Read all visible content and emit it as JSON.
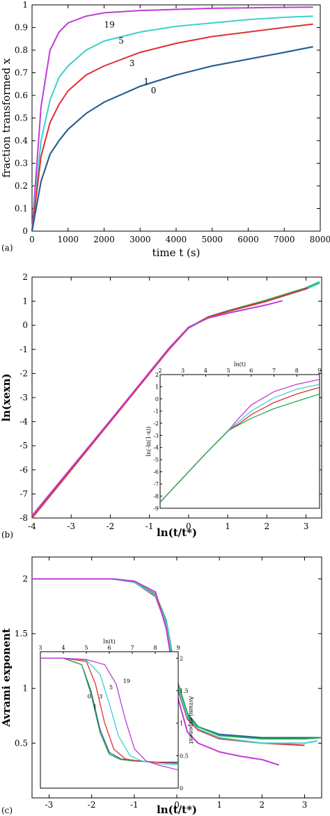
{
  "chart_data": [
    {
      "id": "a",
      "panel_label": "(a)",
      "type": "line",
      "xlabel": "time t (s)",
      "ylabel": "fraction transformed x",
      "xlim": [
        0,
        8000
      ],
      "ylim": [
        0,
        1
      ],
      "xticks": [
        0,
        1000,
        2000,
        3000,
        4000,
        5000,
        6000,
        7000,
        8000
      ],
      "yticks": [
        0,
        0.1,
        0.2,
        0.3,
        0.4,
        0.5,
        0.6,
        0.7,
        0.8,
        0.9,
        1
      ],
      "series": [
        {
          "name": "19",
          "color": "#c03bd9",
          "x": [
            0,
            250,
            500,
            750,
            1000,
            1500,
            2000,
            3000,
            4000,
            5000,
            6000,
            7000,
            7800
          ],
          "y": [
            0,
            0.55,
            0.8,
            0.88,
            0.92,
            0.95,
            0.965,
            0.975,
            0.98,
            0.985,
            0.987,
            0.989,
            0.99
          ]
        },
        {
          "name": "5",
          "color": "#3ccfcf",
          "x": [
            0,
            250,
            500,
            750,
            1000,
            1500,
            2000,
            3000,
            4000,
            5000,
            6000,
            7000,
            7800
          ],
          "y": [
            0,
            0.4,
            0.58,
            0.68,
            0.73,
            0.8,
            0.84,
            0.88,
            0.905,
            0.92,
            0.935,
            0.945,
            0.95
          ]
        },
        {
          "name": "3",
          "color": "#e03030",
          "x": [
            0,
            250,
            500,
            750,
            1000,
            1500,
            2000,
            3000,
            4000,
            5000,
            6000,
            7000,
            7800
          ],
          "y": [
            0,
            0.33,
            0.48,
            0.56,
            0.62,
            0.69,
            0.73,
            0.79,
            0.83,
            0.86,
            0.88,
            0.9,
            0.915
          ]
        },
        {
          "name": "1",
          "color": "#2a9d3a",
          "x": [
            0,
            250,
            500,
            750,
            1000,
            1500,
            2000,
            3000,
            4000,
            5000,
            6000,
            7000,
            7800
          ],
          "y": [
            0,
            0.22,
            0.34,
            0.4,
            0.45,
            0.52,
            0.57,
            0.64,
            0.69,
            0.73,
            0.76,
            0.79,
            0.815
          ]
        },
        {
          "name": "0",
          "color": "#2a5a9a",
          "x": [
            0,
            250,
            500,
            750,
            1000,
            1500,
            2000,
            3000,
            4000,
            5000,
            6000,
            7000,
            7800
          ],
          "y": [
            0,
            0.22,
            0.34,
            0.4,
            0.45,
            0.52,
            0.57,
            0.64,
            0.69,
            0.73,
            0.76,
            0.79,
            0.815
          ]
        }
      ],
      "curve_labels": [
        {
          "text": "19",
          "x": 2000,
          "y": 0.9
        },
        {
          "text": "5",
          "x": 2400,
          "y": 0.83
        },
        {
          "text": "3",
          "x": 2700,
          "y": 0.73
        },
        {
          "text": "1",
          "x": 3100,
          "y": 0.65
        },
        {
          "text": "0",
          "x": 3300,
          "y": 0.61
        }
      ]
    },
    {
      "id": "b",
      "panel_label": "(b)",
      "type": "line",
      "xlabel": "ln(t/t*)",
      "ylabel": "ln(xexn)",
      "xlim": [
        -4,
        3.4
      ],
      "ylim": [
        -8,
        2
      ],
      "xticks": [
        -4,
        -3,
        -2,
        -1,
        0,
        1,
        2,
        3
      ],
      "yticks": [
        -8,
        -7,
        -6,
        -5,
        -4,
        -3,
        -2,
        -1,
        0,
        1,
        2
      ],
      "series": [
        {
          "name": "",
          "color": "#2aa84a",
          "x": [
            -4,
            -2,
            -1,
            -0.5,
            0,
            0.5,
            1,
            2,
            3,
            3.35
          ],
          "y": [
            -8,
            -4,
            -2,
            -1,
            -0.1,
            0.35,
            0.6,
            1.05,
            1.55,
            1.8
          ]
        },
        {
          "name": "",
          "color": "#3ccfcf",
          "x": [
            -4,
            -2,
            -1,
            -0.5,
            0,
            0.5,
            1,
            2,
            3,
            3.35
          ],
          "y": [
            -8,
            -4,
            -2,
            -1,
            -0.12,
            0.32,
            0.56,
            1.0,
            1.5,
            1.75
          ]
        },
        {
          "name": "",
          "color": "#e03030",
          "x": [
            -4,
            -2,
            -1,
            -0.5,
            0,
            0.5,
            1,
            2,
            3.05
          ],
          "y": [
            -8,
            -4,
            -2,
            -1,
            -0.1,
            0.33,
            0.58,
            1.0,
            1.55
          ]
        },
        {
          "name": "",
          "color": "#c03bd9",
          "x": [
            -4,
            -2,
            -1,
            -0.5,
            0,
            0.5,
            1,
            2,
            2.4
          ],
          "y": [
            -7.9,
            -3.95,
            -1.95,
            -0.95,
            -0.08,
            0.3,
            0.5,
            0.85,
            1.02
          ]
        }
      ],
      "inset": {
        "xlabel": "ln(t)",
        "ylabel": "ln(-ln(1-x))",
        "xlim": [
          2,
          9
        ],
        "ylim": [
          -9,
          2
        ],
        "xticks": [
          2,
          3,
          4,
          5,
          6,
          7,
          8,
          9
        ],
        "yticks": [
          -9,
          -8,
          -7,
          -6,
          -5,
          -4,
          -3,
          -2,
          -1,
          0,
          1,
          2
        ],
        "series": [
          {
            "color": "#c03bd9",
            "x": [
              2,
              3,
              4,
              5,
              5.5,
              6,
              7,
              8,
              9
            ],
            "y": [
              -8.5,
              -6.5,
              -4.5,
              -2.6,
              -1.5,
              -0.5,
              0.6,
              1.2,
              1.6
            ]
          },
          {
            "color": "#3ccfcf",
            "x": [
              2,
              3,
              4,
              5,
              5.5,
              6,
              7,
              8,
              9
            ],
            "y": [
              -8.5,
              -6.5,
              -4.5,
              -2.6,
              -1.8,
              -1.0,
              0.1,
              0.8,
              1.2
            ]
          },
          {
            "color": "#e03030",
            "x": [
              2,
              3,
              4,
              5,
              5.5,
              6,
              7,
              8,
              9
            ],
            "y": [
              -8.5,
              -6.5,
              -4.5,
              -2.6,
              -2.0,
              -1.3,
              -0.3,
              0.4,
              0.95
            ]
          },
          {
            "color": "#2aa84a",
            "x": [
              2,
              3,
              4,
              5,
              5.5,
              6,
              7,
              8,
              9
            ],
            "y": [
              -8.5,
              -6.5,
              -4.5,
              -2.6,
              -2.1,
              -1.6,
              -0.8,
              -0.2,
              0.4
            ]
          }
        ]
      }
    },
    {
      "id": "c",
      "panel_label": "(c)",
      "type": "line",
      "xlabel": "ln(t/t*)",
      "ylabel": "Avrami exponent",
      "xlim": [
        -3.4,
        3.4
      ],
      "ylim": [
        0,
        2.2
      ],
      "xticks": [
        -3,
        -2,
        -1,
        0,
        1,
        2,
        3
      ],
      "yticks": [
        0.5,
        1,
        1.5,
        2
      ],
      "series": [
        {
          "name": "",
          "color": "#2a5a9a",
          "x": [
            -3.4,
            -1.5,
            -1,
            -0.5,
            -0.25,
            0,
            0.25,
            0.5,
            1,
            2,
            3,
            3.4
          ],
          "y": [
            2,
            2,
            1.97,
            1.85,
            1.6,
            1.05,
            0.75,
            0.65,
            0.58,
            0.55,
            0.55,
            0.55
          ]
        },
        {
          "name": "",
          "color": "#2aa84a",
          "x": [
            -3.4,
            -1.5,
            -1,
            -0.5,
            -0.25,
            0,
            0.25,
            0.5,
            1,
            2,
            3,
            3.4
          ],
          "y": [
            2,
            2,
            1.97,
            1.86,
            1.62,
            1.08,
            0.77,
            0.65,
            0.57,
            0.54,
            0.54,
            0.55
          ]
        },
        {
          "name": "",
          "color": "#e03030",
          "x": [
            -3.4,
            -1.5,
            -1,
            -0.5,
            -0.25,
            0,
            0.25,
            0.5,
            1,
            2,
            3
          ],
          "y": [
            2,
            2,
            1.97,
            1.84,
            1.58,
            1.02,
            0.72,
            0.62,
            0.54,
            0.5,
            0.48
          ]
        },
        {
          "name": "",
          "color": "#3ccfcf",
          "x": [
            -3.4,
            -1.5,
            -1,
            -0.5,
            -0.25,
            0,
            0.25,
            0.5,
            1,
            2,
            3,
            3.3
          ],
          "y": [
            2,
            2,
            1.97,
            1.85,
            1.6,
            1.04,
            0.74,
            0.63,
            0.55,
            0.5,
            0.5,
            0.52
          ]
        },
        {
          "name": "",
          "color": "#c03bd9",
          "x": [
            -3.4,
            -1.5,
            -1,
            -0.5,
            -0.25,
            0,
            0.25,
            0.5,
            1,
            1.5,
            2,
            2.4
          ],
          "y": [
            2,
            2,
            1.98,
            1.88,
            1.55,
            0.95,
            0.6,
            0.5,
            0.42,
            0.38,
            0.35,
            0.3
          ]
        }
      ],
      "inset": {
        "xlabel": "ln(t)",
        "ylabel": "Avrami exponent",
        "xlim": [
          3,
          9
        ],
        "ylim": [
          0,
          2.1
        ],
        "xticks": [
          3,
          4,
          5,
          6,
          7,
          8,
          9
        ],
        "yticks": [
          0,
          0.5,
          1,
          1.5,
          2
        ],
        "series": [
          {
            "name": "0",
            "color": "#2a5a9a",
            "x": [
              3,
              4,
              4.8,
              5.2,
              5.6,
              6,
              6.5,
              7,
              8,
              9
            ],
            "y": [
              2,
              2,
              1.9,
              1.5,
              0.9,
              0.55,
              0.45,
              0.43,
              0.4,
              0.4
            ]
          },
          {
            "name": "1",
            "color": "#2aa84a",
            "x": [
              3,
              4,
              4.8,
              5.2,
              5.6,
              6,
              6.5,
              7,
              8,
              9
            ],
            "y": [
              2,
              2,
              1.9,
              1.45,
              0.85,
              0.52,
              0.44,
              0.42,
              0.4,
              0.38
            ]
          },
          {
            "name": "3",
            "color": "#e03030",
            "x": [
              3,
              4,
              5,
              5.4,
              5.8,
              6.2,
              6.7,
              7.2,
              8,
              9
            ],
            "y": [
              2,
              2,
              1.95,
              1.6,
              1.0,
              0.6,
              0.45,
              0.42,
              0.4,
              0.38
            ]
          },
          {
            "name": "5",
            "color": "#3ccfcf",
            "x": [
              3,
              4,
              5,
              5.6,
              6,
              6.4,
              6.9,
              7.4,
              8,
              9
            ],
            "y": [
              2,
              2,
              1.97,
              1.75,
              1.3,
              0.8,
              0.5,
              0.42,
              0.38,
              0.36
            ]
          },
          {
            "name": "19",
            "color": "#c03bd9",
            "x": [
              3,
              4,
              5,
              5.8,
              6.3,
              6.7,
              7.1,
              7.6,
              8.2,
              9
            ],
            "y": [
              2,
              2,
              1.98,
              1.9,
              1.6,
              1.05,
              0.6,
              0.42,
              0.35,
              0.28
            ]
          }
        ],
        "curve_labels": [
          {
            "text": "0",
            "x": 5.05,
            "y": 1.38
          },
          {
            "text": "1",
            "x": 5.3,
            "y": 1.22
          },
          {
            "text": "3",
            "x": 5.55,
            "y": 1.38
          },
          {
            "text": "5",
            "x": 6.0,
            "y": 1.52
          },
          {
            "text": "19",
            "x": 6.6,
            "y": 1.62
          }
        ]
      }
    }
  ]
}
